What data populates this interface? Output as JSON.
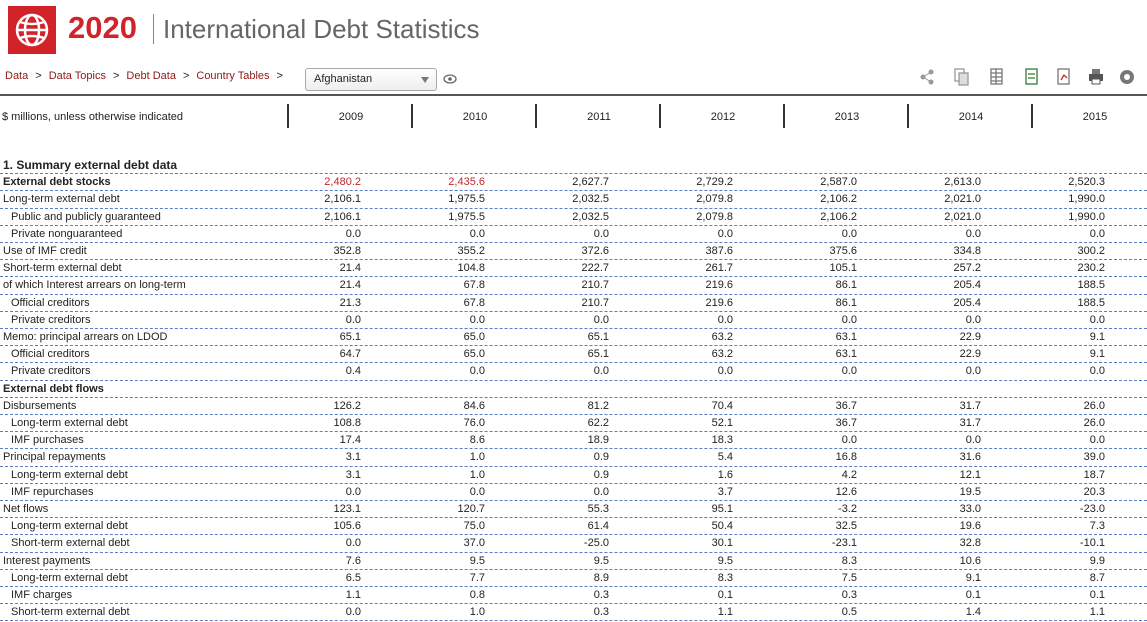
{
  "header": {
    "year": "2020",
    "title": "International Debt Statistics"
  },
  "breadcrumb": {
    "items": [
      "Data",
      "Data Topics",
      "Debt Data",
      "Country Tables"
    ],
    "separator": ">"
  },
  "country": "Afghanistan",
  "table": {
    "unit_note": "$ millions, unless otherwise indicated",
    "columns": [
      "2009",
      "2010",
      "2011",
      "2012",
      "2013",
      "2014",
      "2015"
    ],
    "rows": [
      {
        "label": "1. Summary external debt data"
      },
      {
        "label": "External debt stocks",
        "cells": [
          "2,480.2",
          "2,435.6",
          "2,627.7",
          "2,729.2",
          "2,587.0",
          "2,613.0",
          "2,520.3"
        ]
      },
      {
        "label": "Long-term external debt",
        "cells": [
          "2,106.1",
          "1,975.5",
          "2,032.5",
          "2,079.8",
          "2,106.2",
          "2,021.0",
          "1,990.0"
        ]
      },
      {
        "label": "Public and publicly guaranteed",
        "cells": [
          "2,106.1",
          "1,975.5",
          "2,032.5",
          "2,079.8",
          "2,106.2",
          "2,021.0",
          "1,990.0"
        ]
      },
      {
        "label": "Private nonguaranteed",
        "cells": [
          "0.0",
          "0.0",
          "0.0",
          "0.0",
          "0.0",
          "0.0",
          "0.0"
        ]
      },
      {
        "label": "Use of IMF credit",
        "cells": [
          "352.8",
          "355.2",
          "372.6",
          "387.6",
          "375.6",
          "334.8",
          "300.2"
        ]
      },
      {
        "label": "Short-term external debt",
        "cells": [
          "21.4",
          "104.8",
          "222.7",
          "261.7",
          "105.1",
          "257.2",
          "230.2"
        ]
      },
      {
        "label": "of which Interest arrears on long-term",
        "cells": [
          "21.4",
          "67.8",
          "210.7",
          "219.6",
          "86.1",
          "205.4",
          "188.5"
        ]
      },
      {
        "label": "Official creditors",
        "cells": [
          "21.3",
          "67.8",
          "210.7",
          "219.6",
          "86.1",
          "205.4",
          "188.5"
        ]
      },
      {
        "label": "Private creditors",
        "cells": [
          "0.0",
          "0.0",
          "0.0",
          "0.0",
          "0.0",
          "0.0",
          "0.0"
        ]
      },
      {
        "label": "Memo: principal arrears on LDOD",
        "cells": [
          "65.1",
          "65.0",
          "65.1",
          "63.2",
          "63.1",
          "22.9",
          "9.1"
        ]
      },
      {
        "label": "Official creditors",
        "cells": [
          "64.7",
          "65.0",
          "65.1",
          "63.2",
          "63.1",
          "22.9",
          "9.1"
        ]
      },
      {
        "label": "Private creditors",
        "cells": [
          "0.4",
          "0.0",
          "0.0",
          "0.0",
          "0.0",
          "0.0",
          "0.0"
        ]
      },
      {
        "label": "External debt flows"
      },
      {
        "label": "Disbursements",
        "cells": [
          "126.2",
          "84.6",
          "81.2",
          "70.4",
          "36.7",
          "31.7",
          "26.0"
        ]
      },
      {
        "label": "Long-term external debt",
        "cells": [
          "108.8",
          "76.0",
          "62.2",
          "52.1",
          "36.7",
          "31.7",
          "26.0"
        ]
      },
      {
        "label": "IMF purchases",
        "cells": [
          "17.4",
          "8.6",
          "18.9",
          "18.3",
          "0.0",
          "0.0",
          "0.0"
        ]
      },
      {
        "label": "Principal repayments",
        "cells": [
          "3.1",
          "1.0",
          "0.9",
          "5.4",
          "16.8",
          "31.6",
          "39.0"
        ]
      },
      {
        "label": "Long-term external debt",
        "cells": [
          "3.1",
          "1.0",
          "0.9",
          "1.6",
          "4.2",
          "12.1",
          "18.7"
        ]
      },
      {
        "label": "IMF repurchases",
        "cells": [
          "0.0",
          "0.0",
          "0.0",
          "3.7",
          "12.6",
          "19.5",
          "20.3"
        ]
      },
      {
        "label": "Net flows",
        "cells": [
          "123.1",
          "120.7",
          "55.3",
          "95.1",
          "-3.2",
          "33.0",
          "-23.0"
        ]
      },
      {
        "label": "Long-term external debt",
        "cells": [
          "105.6",
          "75.0",
          "61.4",
          "50.4",
          "32.5",
          "19.6",
          "7.3"
        ]
      },
      {
        "label": "Short-term external debt",
        "cells": [
          "0.0",
          "37.0",
          "-25.0",
          "30.1",
          "-23.1",
          "32.8",
          "-10.1"
        ]
      },
      {
        "label": "Interest payments",
        "cells": [
          "7.6",
          "9.5",
          "9.5",
          "9.5",
          "8.3",
          "10.6",
          "9.9"
        ]
      },
      {
        "label": "Long-term external debt",
        "cells": [
          "6.5",
          "7.7",
          "8.9",
          "8.3",
          "7.5",
          "9.1",
          "8.7"
        ]
      },
      {
        "label": "IMF charges",
        "cells": [
          "1.1",
          "0.8",
          "0.3",
          "0.1",
          "0.3",
          "0.1",
          "0.1"
        ]
      },
      {
        "label": "Short-term external debt",
        "cells": [
          "0.0",
          "1.0",
          "0.3",
          "1.1",
          "0.5",
          "1.4",
          "1.1"
        ]
      }
    ]
  }
}
